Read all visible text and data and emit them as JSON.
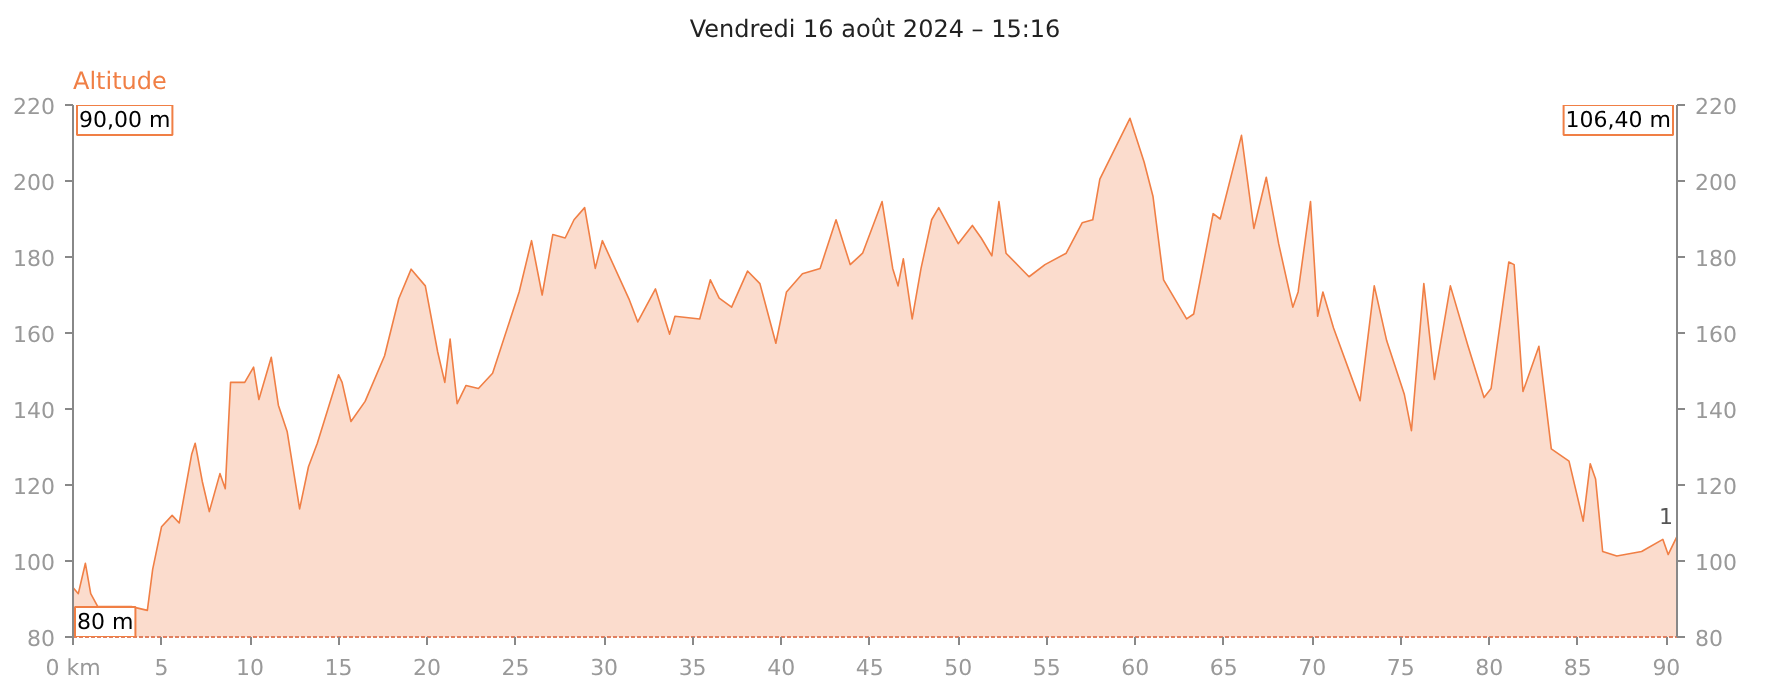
{
  "chart_data": {
    "type": "area",
    "title": "Vendredi 16 août 2024 – 15:16",
    "ylabel": "Altitude",
    "x": [
      0,
      0.3,
      0.7,
      1.0,
      1.4,
      3.3,
      4.2,
      4.5,
      5.0,
      5.6,
      6.0,
      6.7,
      6.9,
      7.3,
      7.7,
      8.3,
      8.6,
      8.9,
      9.7,
      10.2,
      10.5,
      11.2,
      11.6,
      12.1,
      12.8,
      13.3,
      13.8,
      15.0,
      15.2,
      15.7,
      16.5,
      17.6,
      18.4,
      19.1,
      19.9,
      20.6,
      21.0,
      21.3,
      21.7,
      22.2,
      22.9,
      23.7,
      25.2,
      25.9,
      26.5,
      27.1,
      27.8,
      28.3,
      28.9,
      29.5,
      29.9,
      31.4,
      31.9,
      32.9,
      33.7,
      34.0,
      35.4,
      36.0,
      36.5,
      37.2,
      38.1,
      38.8,
      39.7,
      40.3,
      41.2,
      42.2,
      43.1,
      43.9,
      44.6,
      45.7,
      46.3,
      46.6,
      46.9,
      47.4,
      47.9,
      48.5,
      48.9,
      50.0,
      50.8,
      51.3,
      51.9,
      52.3,
      52.7,
      54.0,
      54.9,
      56.1,
      57.0,
      57.6,
      58.0,
      59.7,
      60.5,
      61.0,
      61.6,
      62.9,
      63.3,
      64.4,
      64.8,
      66.0,
      66.7,
      67.4,
      68.1,
      68.9,
      69.2,
      69.9,
      70.3,
      70.6,
      71.2,
      72.7,
      73.5,
      74.2,
      75.2,
      75.6,
      76.3,
      76.9,
      77.8,
      78.8,
      79.7,
      80.1,
      81.1,
      81.4,
      81.9,
      82.8,
      83.5,
      84.5,
      85.3,
      85.7,
      86.0,
      86.4,
      87.2,
      88.6,
      89.8,
      90.1,
      90.6
    ],
    "series": [
      {
        "color": "#f07f45",
        "values": [
          93,
          91.4,
          99.4,
          91.4,
          88,
          88,
          87,
          97.8,
          109,
          112,
          110,
          128,
          131,
          121,
          113,
          123,
          119,
          147,
          147,
          151,
          142.5,
          153.6,
          141,
          134,
          113.7,
          124.8,
          131,
          149,
          147,
          136.7,
          142,
          154,
          169,
          176.8,
          172.4,
          155,
          147,
          158.4,
          141.4,
          146.2,
          145.4,
          149.4,
          170.8,
          184.3,
          170,
          185.9,
          185,
          189.8,
          193,
          177,
          184.3,
          169,
          162.9,
          171.6,
          159.7,
          164.4,
          163.7,
          174,
          169.2,
          166.8,
          176.3,
          173,
          157.3,
          170.8,
          175.6,
          177,
          189.8,
          178,
          181,
          194.6,
          177,
          172.4,
          179.5,
          163.7,
          177,
          189.8,
          193,
          183.5,
          188.3,
          185,
          180.3,
          194.6,
          181,
          174.8,
          178,
          181,
          189,
          189.8,
          200.5,
          216.5,
          205,
          196,
          174,
          163.7,
          165,
          191.4,
          190,
          212,
          187.5,
          201,
          183.5,
          166.8,
          170.8,
          194.6,
          164.4,
          170.8,
          161.3,
          142.2,
          172.4,
          158,
          143.8,
          134.3,
          173,
          147.8,
          172.4,
          156.5,
          143,
          145.4,
          178.7,
          178,
          144.6,
          156.5,
          129.5,
          126.3,
          110.5,
          125.6,
          121.6,
          102.5,
          101.3,
          102.5,
          105.7,
          101.7,
          106.5
        ]
      }
    ],
    "xlim": [
      0,
      90.6
    ],
    "xticks": [
      {
        "value": 0,
        "label": "0 km"
      },
      5,
      10,
      15,
      20,
      25,
      30,
      35,
      40,
      45,
      50,
      55,
      60,
      65,
      70,
      75,
      80,
      85,
      90
    ],
    "ylim": [
      80,
      220
    ],
    "yticks": [
      80,
      100,
      120,
      140,
      160,
      180,
      200,
      220
    ],
    "y2lim": [
      80,
      220
    ],
    "y2ticks": [
      80,
      100,
      120,
      140,
      160,
      180,
      200,
      220
    ],
    "grid": false,
    "annotations": [
      "90,00 m",
      "106,40 m",
      "80 m",
      {
        "text": "1",
        "x": 90.6,
        "y": 106.5
      }
    ]
  }
}
